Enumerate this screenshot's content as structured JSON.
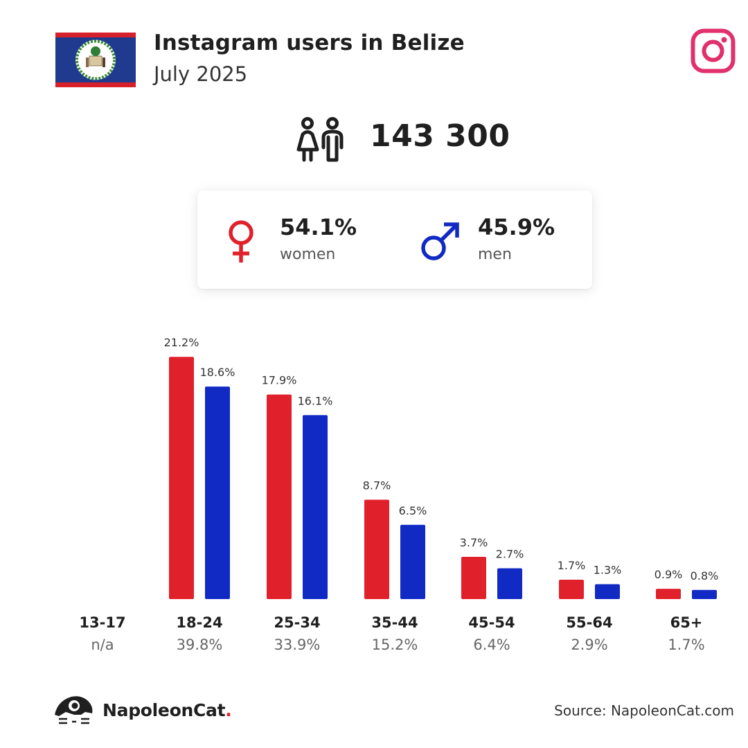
{
  "header": {
    "title": "Instagram users in Belize",
    "subtitle": "July 2025"
  },
  "total": {
    "value": "143 300"
  },
  "gender": {
    "women": {
      "pct": "54.1%",
      "label": "women"
    },
    "men": {
      "pct": "45.9%",
      "label": "men"
    }
  },
  "colors": {
    "women": "#e0202a",
    "men": "#112ac4",
    "brand_dot": "#e3212b",
    "instagram": "#e1306c"
  },
  "chart_data": {
    "type": "bar",
    "categories": [
      "13-17",
      "18-24",
      "25-34",
      "35-44",
      "45-54",
      "55-64",
      "65+"
    ],
    "category_totals": [
      "n/a",
      "39.8%",
      "33.9%",
      "15.2%",
      "6.4%",
      "2.9%",
      "1.7%"
    ],
    "series": [
      {
        "name": "women",
        "values": [
          null,
          21.2,
          17.9,
          8.7,
          3.7,
          1.7,
          0.9
        ],
        "labels": [
          "",
          "21.2%",
          "17.9%",
          "8.7%",
          "3.7%",
          "1.7%",
          "0.9%"
        ]
      },
      {
        "name": "men",
        "values": [
          null,
          18.6,
          16.1,
          6.5,
          2.7,
          1.3,
          0.8
        ],
        "labels": [
          "",
          "18.6%",
          "16.1%",
          "6.5%",
          "2.7%",
          "1.3%",
          "0.8%"
        ]
      }
    ],
    "unit": "%",
    "grid": false
  },
  "footer": {
    "brand": "NapoleonCat",
    "brand_dot": ".",
    "source": "Source: NapoleonCat.com"
  }
}
